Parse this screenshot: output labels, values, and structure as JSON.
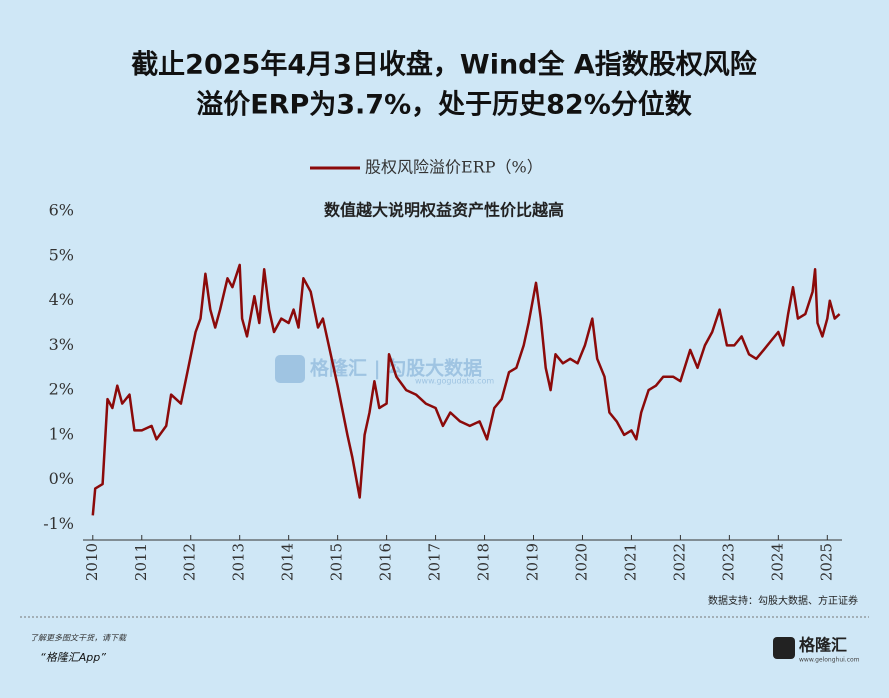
{
  "chart_data": {
    "type": "line",
    "title_lines": [
      "截止2025年4月3日收盘，Wind全 A指数股权风险",
      "溢价ERP为3.7%，处于历史82%分位数"
    ],
    "annotation": "数值越大说明权益资产性价比越高",
    "watermark": "格隆汇 | 勾股大数据",
    "watermark_url": "www.gogudata.com",
    "source": "数据支持：勾股大数据、方正证券",
    "footer_note": "了解更多图文干货，请下载",
    "footer_app": "“格隆汇App”",
    "logo": "格隆汇",
    "logo_url": "www.gelonghui.com",
    "x": [
      2010.0,
      2010.05,
      2010.2,
      2010.3,
      2010.4,
      2010.5,
      2010.6,
      2010.75,
      2010.85,
      2011.0,
      2011.2,
      2011.3,
      2011.5,
      2011.6,
      2011.8,
      2011.95,
      2012.1,
      2012.2,
      2012.3,
      2012.4,
      2012.5,
      2012.6,
      2012.75,
      2012.85,
      2013.0,
      2013.05,
      2013.15,
      2013.3,
      2013.4,
      2013.5,
      2013.6,
      2013.7,
      2013.85,
      2014.0,
      2014.1,
      2014.2,
      2014.3,
      2014.45,
      2014.6,
      2014.7,
      2014.9,
      2015.0,
      2015.2,
      2015.3,
      2015.45,
      2015.55,
      2015.65,
      2015.75,
      2015.85,
      2016.0,
      2016.05,
      2016.2,
      2016.4,
      2016.6,
      2016.8,
      2017.0,
      2017.15,
      2017.3,
      2017.5,
      2017.7,
      2017.9,
      2018.05,
      2018.2,
      2018.35,
      2018.5,
      2018.65,
      2018.8,
      2018.9,
      2019.05,
      2019.15,
      2019.25,
      2019.35,
      2019.45,
      2019.6,
      2019.75,
      2019.9,
      2020.05,
      2020.2,
      2020.3,
      2020.45,
      2020.55,
      2020.7,
      2020.85,
      2021.0,
      2021.1,
      2021.2,
      2021.35,
      2021.5,
      2021.65,
      2021.85,
      2022.0,
      2022.2,
      2022.35,
      2022.5,
      2022.65,
      2022.8,
      2022.95,
      2023.1,
      2023.25,
      2023.4,
      2023.55,
      2023.7,
      2023.85,
      2024.0,
      2024.1,
      2024.2,
      2024.3,
      2024.4,
      2024.55,
      2024.7,
      2024.75,
      2024.8,
      2024.9,
      2025.0,
      2025.05,
      2025.15,
      2025.25
    ],
    "series": [
      {
        "name": "股权风险溢价ERP（%）",
        "color": "#8b0a0a",
        "values": [
          -0.8,
          -0.2,
          -0.1,
          1.8,
          1.6,
          2.1,
          1.7,
          1.9,
          1.1,
          1.1,
          1.2,
          0.9,
          1.2,
          1.9,
          1.7,
          2.5,
          3.3,
          3.6,
          4.6,
          3.8,
          3.4,
          3.8,
          4.5,
          4.3,
          4.8,
          3.6,
          3.2,
          4.1,
          3.5,
          4.7,
          3.8,
          3.3,
          3.6,
          3.5,
          3.8,
          3.4,
          4.5,
          4.2,
          3.4,
          3.6,
          2.6,
          2.1,
          1.0,
          0.5,
          -0.4,
          1.0,
          1.5,
          2.2,
          1.6,
          1.7,
          2.8,
          2.3,
          2.0,
          1.9,
          1.7,
          1.6,
          1.2,
          1.5,
          1.3,
          1.2,
          1.3,
          0.9,
          1.6,
          1.8,
          2.4,
          2.5,
          3.0,
          3.5,
          4.4,
          3.6,
          2.5,
          2.0,
          2.8,
          2.6,
          2.7,
          2.6,
          3.0,
          3.6,
          2.7,
          2.3,
          1.5,
          1.3,
          1.0,
          1.1,
          0.9,
          1.5,
          2.0,
          2.1,
          2.3,
          2.3,
          2.2,
          2.9,
          2.5,
          3.0,
          3.3,
          3.8,
          3.0,
          3.0,
          3.2,
          2.8,
          2.7,
          2.9,
          3.1,
          3.3,
          3.0,
          3.7,
          4.3,
          3.6,
          3.7,
          4.2,
          4.7,
          3.5,
          3.2,
          3.6,
          4.0,
          3.6,
          3.7
        ]
      }
    ],
    "xlim": [
      2009.8,
      2025.3
    ],
    "ylim": [
      -1.35,
      6.25
    ],
    "xticks": [
      2010,
      2011,
      2012,
      2013,
      2014,
      2015,
      2016,
      2017,
      2018,
      2019,
      2020,
      2021,
      2022,
      2023,
      2024,
      2025
    ],
    "yticks": [
      {
        "value": -1,
        "label": "-1%"
      },
      {
        "value": 0,
        "label": "0%"
      },
      {
        "value": 1,
        "label": "1%"
      },
      {
        "value": 2,
        "label": "2%"
      },
      {
        "value": 3,
        "label": "3%"
      },
      {
        "value": 4,
        "label": "4%"
      },
      {
        "value": 5,
        "label": "5%"
      },
      {
        "value": 6,
        "label": "6%"
      }
    ],
    "grid": false
  }
}
